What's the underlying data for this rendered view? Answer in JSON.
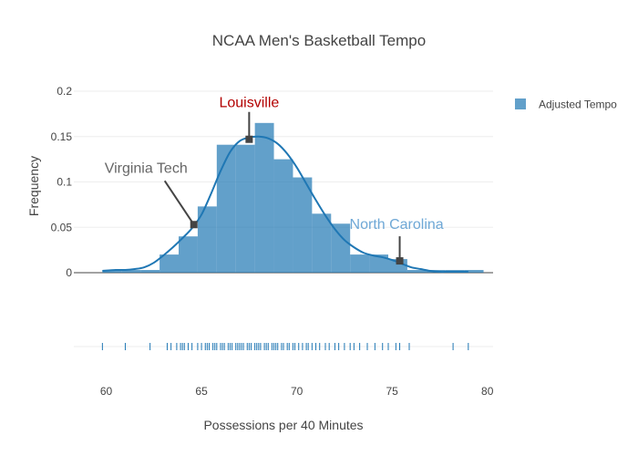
{
  "chart_data": {
    "type": "histogram",
    "title": "NCAA Men's Basketball Tempo",
    "xlabel": "Possessions per 40 Minutes",
    "ylabel": "Frequency",
    "xlim": [
      58.3,
      80.3
    ],
    "ylim": [
      0,
      0.2
    ],
    "x_ticks": [
      "60",
      "65",
      "70",
      "75",
      "80"
    ],
    "y_ticks": [
      "0",
      "0.05",
      "0.1",
      "0.15",
      "0.2"
    ],
    "grid": true,
    "legend_position": "top-right",
    "colors": {
      "bar": "#1f77b4",
      "curve": "#1f77b4",
      "marker": "#444444"
    },
    "series": [
      {
        "name": "Adjusted Tempo",
        "bin_width": 1,
        "bin_edges": [
          59.8,
          60.8,
          61.8,
          62.8,
          63.8,
          64.8,
          65.8,
          66.8,
          67.8,
          68.8,
          69.8,
          70.8,
          71.8,
          72.8,
          73.8,
          74.8,
          75.8,
          76.8,
          77.8,
          78.8,
          79.8
        ],
        "frequencies": [
          0.003,
          0.003,
          0.003,
          0.02,
          0.04,
          0.073,
          0.141,
          0.141,
          0.165,
          0.125,
          0.105,
          0.065,
          0.054,
          0.02,
          0.02,
          0.015,
          0.003,
          0.003,
          0.003,
          0.003
        ]
      }
    ],
    "kde": {
      "x": [
        59.8,
        60.5,
        61.0,
        61.5,
        62.0,
        62.5,
        63.0,
        63.5,
        64.0,
        64.5,
        65.0,
        65.5,
        66.0,
        66.5,
        67.0,
        67.5,
        68.0,
        68.5,
        69.0,
        69.5,
        70.0,
        70.5,
        71.0,
        71.5,
        72.0,
        72.5,
        73.0,
        73.5,
        74.0,
        74.5,
        75.0,
        75.5,
        76.0,
        76.5,
        77.0,
        77.5,
        78.0,
        79.0
      ],
      "y": [
        0.002,
        0.003,
        0.003,
        0.004,
        0.006,
        0.011,
        0.019,
        0.028,
        0.038,
        0.049,
        0.064,
        0.087,
        0.112,
        0.133,
        0.145,
        0.149,
        0.15,
        0.148,
        0.142,
        0.131,
        0.116,
        0.098,
        0.08,
        0.063,
        0.048,
        0.036,
        0.028,
        0.022,
        0.019,
        0.017,
        0.014,
        0.01,
        0.006,
        0.004,
        0.002,
        0.001,
        0.001,
        0.001
      ]
    },
    "rug": [
      59.8,
      61.0,
      62.3,
      63.2,
      63.4,
      63.7,
      63.9,
      64.0,
      64.1,
      64.3,
      64.5,
      64.8,
      65.0,
      65.2,
      65.3,
      65.4,
      65.6,
      65.7,
      65.8,
      66.0,
      66.1,
      66.2,
      66.4,
      66.5,
      66.6,
      66.8,
      66.9,
      67.0,
      67.1,
      67.2,
      67.4,
      67.5,
      67.6,
      67.8,
      67.9,
      68.0,
      68.1,
      68.3,
      68.4,
      68.5,
      68.7,
      68.8,
      68.9,
      69.0,
      69.2,
      69.3,
      69.5,
      69.6,
      69.8,
      69.9,
      70.1,
      70.3,
      70.5,
      70.6,
      70.8,
      71.0,
      71.2,
      71.5,
      71.7,
      72.0,
      72.2,
      72.5,
      72.8,
      73.0,
      73.3,
      73.7,
      74.1,
      74.5,
      74.8,
      75.2,
      75.4,
      75.9,
      78.2,
      79.0
    ],
    "annotations": [
      {
        "label": "Louisville",
        "x": 67.5,
        "y": 0.147,
        "color": "#b30000",
        "text_anchor": "middle"
      },
      {
        "label": "Virginia Tech",
        "x": 64.6,
        "y": 0.053,
        "color": "#666666",
        "text_anchor": "end"
      },
      {
        "label": "North Carolina",
        "x": 75.4,
        "y": 0.013,
        "color": "#6fa8d6",
        "text_anchor": "start"
      }
    ]
  }
}
